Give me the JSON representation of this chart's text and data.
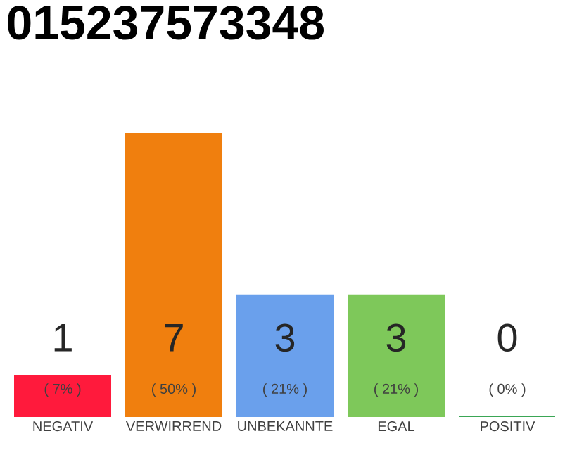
{
  "chart_data": {
    "type": "bar",
    "title": "015237573348",
    "categories": [
      "NEGATIV",
      "VERWIRREND",
      "UNBEKANNTE",
      "EGAL",
      "POSITIV"
    ],
    "values": [
      1,
      7,
      3,
      3,
      0
    ],
    "colors": [
      "#ff1a3c",
      "#f07f0e",
      "#6aa0ec",
      "#7ec85a",
      "#3aa655"
    ],
    "ylim": [
      0,
      7
    ],
    "data_labels": true,
    "annotations": [
      "( 7% )",
      "( 50% )",
      "( 21% )",
      "( 21% )",
      "( 0% )"
    ]
  }
}
